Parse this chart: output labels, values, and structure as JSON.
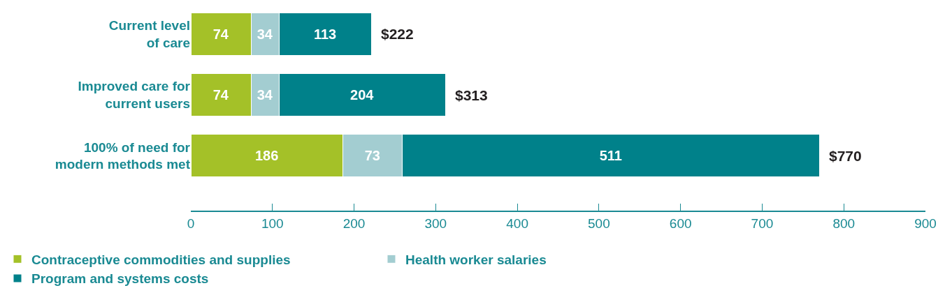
{
  "chart_data": {
    "type": "bar",
    "orientation": "horizontal",
    "stacked": true,
    "categories": [
      "Current level of care",
      "Improved care for current users",
      "100% of need for modern methods met"
    ],
    "series": [
      {
        "name": "Contraceptive commodities and supplies",
        "color": "#a4c128",
        "values": [
          74,
          74,
          186
        ]
      },
      {
        "name": "Health worker salaries",
        "color": "#a3cdd1",
        "values": [
          34,
          34,
          73
        ]
      },
      {
        "name": "Program and systems costs",
        "color": "#00818a",
        "values": [
          113,
          204,
          511
        ]
      }
    ],
    "totals": [
      "$222",
      "$313",
      "$770"
    ],
    "data_labels": true,
    "xlim": [
      0,
      900
    ],
    "xticks": [
      0,
      100,
      200,
      300,
      400,
      500,
      600,
      700,
      800,
      900
    ],
    "legend": "bottom"
  }
}
